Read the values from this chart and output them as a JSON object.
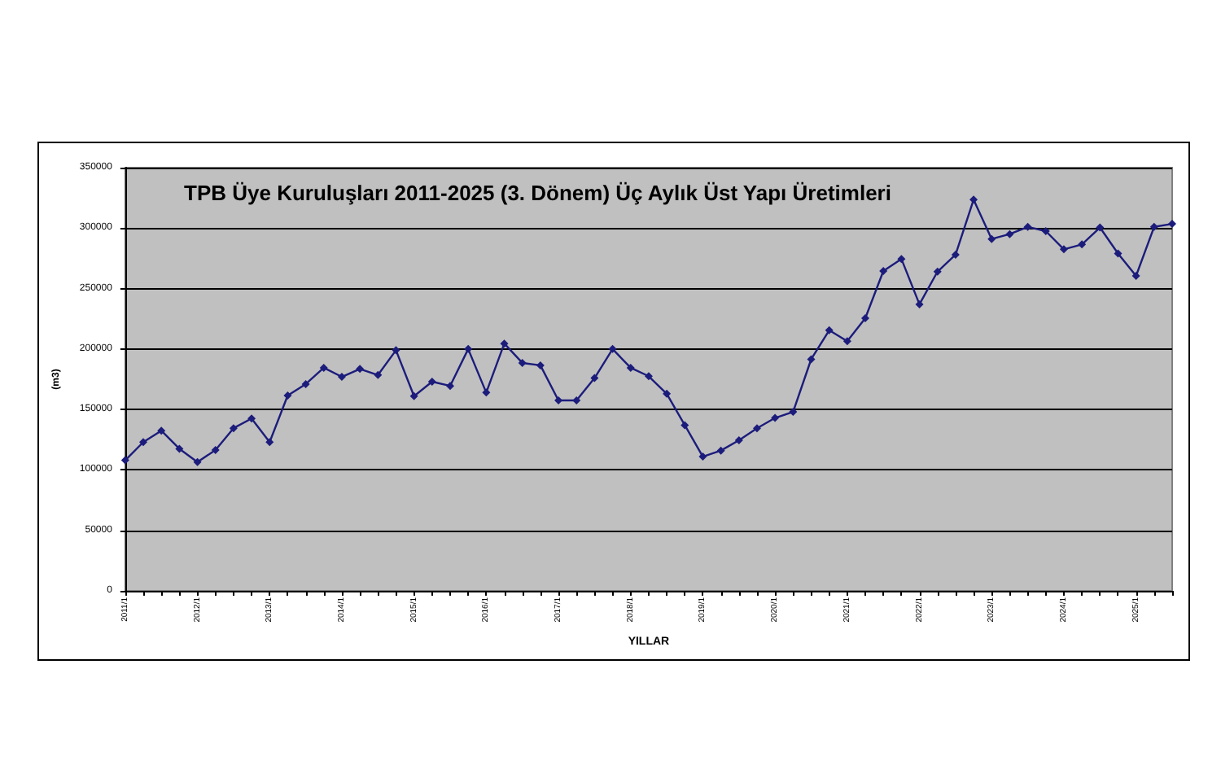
{
  "chart_data": {
    "type": "line",
    "title": "TPB Üye Kuruluşları 2011-2025 (3. Dönem) Üç Aylık Üst Yapı Üretimleri",
    "xlabel": "YILLAR",
    "ylabel": "(m3)",
    "categories": [
      "2011/1",
      null,
      null,
      null,
      "2012/1",
      null,
      null,
      null,
      "2013/1",
      null,
      null,
      null,
      "2014/1",
      null,
      null,
      null,
      "2015/1",
      null,
      null,
      null,
      "2016/1",
      null,
      null,
      null,
      "2017/1",
      null,
      null,
      null,
      "2018/1",
      null,
      null,
      null,
      "2019/1",
      null,
      null,
      null,
      "2020/1",
      null,
      null,
      null,
      "2021/1",
      null,
      null,
      null,
      "2022/1",
      null,
      null,
      null,
      "2023/1",
      null,
      null,
      null,
      "2024/1",
      null,
      null,
      null,
      "2025/1",
      null,
      null
    ],
    "series": [
      {
        "color": "#1c1c7c",
        "values": [
          108000,
          123000,
          132500,
          117500,
          106500,
          116500,
          134500,
          142500,
          123000,
          161500,
          171000,
          184500,
          177000,
          183500,
          178500,
          199000,
          161000,
          173000,
          169500,
          200000,
          164000,
          204500,
          188500,
          186500,
          157500,
          157500,
          176000,
          200000,
          184500,
          177500,
          163000,
          137000,
          111000,
          116000,
          124500,
          134500,
          143000,
          148000,
          191500,
          215500,
          206500,
          225500,
          264500,
          274500,
          237000,
          264000,
          278000,
          323500,
          291000,
          295000,
          301000,
          297500,
          282500,
          286500,
          300500,
          279000,
          260500,
          301000,
          303500
        ]
      }
    ],
    "ylim": [
      0,
      350000
    ],
    "yticks": [
      0,
      50000,
      100000,
      150000,
      200000,
      250000,
      300000,
      350000
    ],
    "grid": "y",
    "marker": "diamond",
    "line_style": "solid"
  }
}
